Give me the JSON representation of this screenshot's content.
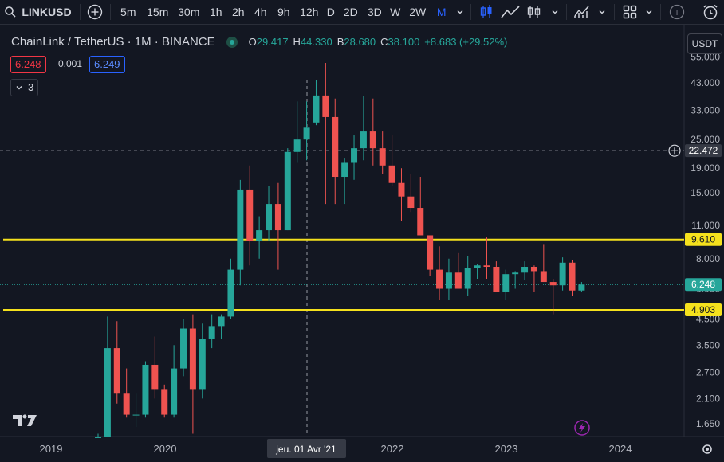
{
  "toolbar": {
    "symbol": "LINKUSD",
    "intervals": [
      "5m",
      "15m",
      "30m",
      "1h",
      "2h",
      "4h",
      "9h",
      "12h",
      "D",
      "2D",
      "3D",
      "W",
      "2W",
      "M"
    ],
    "active_interval": "M",
    "icons": [
      "search-icon",
      "plus-circle-icon",
      "chevron-down-icon",
      "candles-icon",
      "line-chart-icon",
      "bars-icon",
      "chevron-down-icon",
      "indicators-icon",
      "chevron-down-icon",
      "layout-grid-icon",
      "chevron-down-icon",
      "user-circle-icon",
      "alarm-clock-icon"
    ]
  },
  "legend": {
    "title": "ChainLink / TetherUS · 1M · BINANCE",
    "o_label": "O",
    "o_value": "29.417",
    "h_label": "H",
    "h_value": "44.330",
    "b_label": "B",
    "b_value": "28.680",
    "c_label": "C",
    "c_value": "38.100",
    "change": "+8.683 (+29.52%)",
    "sell_price": "6.248",
    "spread": "0.001",
    "buy_price": "6.249",
    "indicators_count": "3",
    "currency": "USDT"
  },
  "chart_data": {
    "type": "candlestick",
    "symbol": "LINKUSD",
    "interval": "1M",
    "y_scale": "log",
    "ylim": [
      1.4,
      60
    ],
    "x_ticks": [
      "2019",
      "2020",
      "2021",
      "2022",
      "2023",
      "2024"
    ],
    "y_ticks": [
      "55.000",
      "43.000",
      "33.000",
      "25.000",
      "19.000",
      "15.000",
      "11.000",
      "8.000",
      "6.000",
      "4.500",
      "3.500",
      "2.700",
      "2.100",
      "1.650"
    ],
    "crosshair": {
      "x_label": "jeu. 01 Avr '21",
      "y_label": "22.472"
    },
    "horizontal_lines": [
      {
        "value": 9.61,
        "label": "9.610",
        "color": "#f5e11d"
      },
      {
        "value": 4.903,
        "label": "4.903",
        "color": "#f5e11d"
      }
    ],
    "last_price": {
      "value": 6.248,
      "label": "6.248",
      "color": "#26a69a"
    },
    "up_color": "#26a69a",
    "down_color": "#ef5350",
    "candles": [
      {
        "o": 1.2,
        "h": 1.5,
        "l": 1.1,
        "c": 1.45
      },
      {
        "o": 1.45,
        "h": 4.6,
        "l": 1.4,
        "c": 3.4
      },
      {
        "o": 3.4,
        "h": 4.4,
        "l": 2.0,
        "c": 2.2
      },
      {
        "o": 2.2,
        "h": 2.8,
        "l": 1.75,
        "c": 1.8
      },
      {
        "o": 1.8,
        "h": 2.2,
        "l": 1.6,
        "c": 1.8
      },
      {
        "o": 1.8,
        "h": 3.0,
        "l": 1.75,
        "c": 2.9
      },
      {
        "o": 2.9,
        "h": 3.8,
        "l": 2.1,
        "c": 2.3
      },
      {
        "o": 2.3,
        "h": 2.4,
        "l": 1.75,
        "c": 1.8
      },
      {
        "o": 1.8,
        "h": 3.5,
        "l": 1.75,
        "c": 2.8
      },
      {
        "o": 2.8,
        "h": 4.5,
        "l": 2.6,
        "c": 4.1
      },
      {
        "o": 4.1,
        "h": 4.7,
        "l": 1.5,
        "c": 2.3
      },
      {
        "o": 2.3,
        "h": 4.3,
        "l": 2.1,
        "c": 3.7
      },
      {
        "o": 3.7,
        "h": 4.7,
        "l": 3.4,
        "c": 4.2
      },
      {
        "o": 4.2,
        "h": 4.7,
        "l": 3.7,
        "c": 4.6
      },
      {
        "o": 4.6,
        "h": 8.0,
        "l": 4.5,
        "c": 7.2
      },
      {
        "o": 7.2,
        "h": 17.0,
        "l": 6.2,
        "c": 15.5
      },
      {
        "o": 15.5,
        "h": 19.5,
        "l": 7.5,
        "c": 9.5
      },
      {
        "o": 9.5,
        "h": 12.0,
        "l": 8.0,
        "c": 10.5
      },
      {
        "o": 10.5,
        "h": 16.0,
        "l": 9.5,
        "c": 13.5
      },
      {
        "o": 13.5,
        "h": 16.5,
        "l": 7.2,
        "c": 10.5
      },
      {
        "o": 10.5,
        "h": 23.0,
        "l": 10.5,
        "c": 22.2
      },
      {
        "o": 22.2,
        "h": 36.0,
        "l": 20.0,
        "c": 25.0
      },
      {
        "o": 25.0,
        "h": 36.0,
        "l": 20.5,
        "c": 28.0
      },
      {
        "o": 29.417,
        "h": 44.33,
        "l": 28.68,
        "c": 38.1
      },
      {
        "o": 38.1,
        "h": 52.0,
        "l": 13.5,
        "c": 31.0
      },
      {
        "o": 31.0,
        "h": 37.0,
        "l": 13.5,
        "c": 17.5
      },
      {
        "o": 17.5,
        "h": 21.0,
        "l": 13.5,
        "c": 20.0
      },
      {
        "o": 20.0,
        "h": 26.0,
        "l": 17.0,
        "c": 23.0
      },
      {
        "o": 23.0,
        "h": 38.0,
        "l": 20.5,
        "c": 27.0
      },
      {
        "o": 27.0,
        "h": 37.0,
        "l": 19.5,
        "c": 23.0
      },
      {
        "o": 23.0,
        "h": 27.0,
        "l": 18.0,
        "c": 19.5
      },
      {
        "o": 19.5,
        "h": 26.0,
        "l": 16.0,
        "c": 16.5
      },
      {
        "o": 16.5,
        "h": 19.0,
        "l": 11.5,
        "c": 14.5
      },
      {
        "o": 14.5,
        "h": 18.0,
        "l": 12.5,
        "c": 13.0
      },
      {
        "o": 13.0,
        "h": 17.5,
        "l": 10.0,
        "c": 10.0
      },
      {
        "o": 10.0,
        "h": 10.0,
        "l": 6.8,
        "c": 7.2
      },
      {
        "o": 7.2,
        "h": 9.0,
        "l": 5.4,
        "c": 6.0
      },
      {
        "o": 6.0,
        "h": 8.0,
        "l": 5.4,
        "c": 7.0
      },
      {
        "o": 7.0,
        "h": 8.5,
        "l": 6.0,
        "c": 6.0
      },
      {
        "o": 6.0,
        "h": 8.2,
        "l": 5.6,
        "c": 7.3
      },
      {
        "o": 7.3,
        "h": 7.6,
        "l": 6.6,
        "c": 7.5
      },
      {
        "o": 7.5,
        "h": 9.8,
        "l": 6.6,
        "c": 7.4
      },
      {
        "o": 7.4,
        "h": 7.8,
        "l": 5.8,
        "c": 5.8
      },
      {
        "o": 5.8,
        "h": 7.2,
        "l": 5.4,
        "c": 6.9
      },
      {
        "o": 6.9,
        "h": 7.1,
        "l": 6.0,
        "c": 7.0
      },
      {
        "o": 7.0,
        "h": 7.8,
        "l": 6.5,
        "c": 7.4
      },
      {
        "o": 7.4,
        "h": 7.5,
        "l": 5.8,
        "c": 7.1
      },
      {
        "o": 7.1,
        "h": 9.2,
        "l": 6.5,
        "c": 6.4
      },
      {
        "o": 6.4,
        "h": 6.6,
        "l": 4.7,
        "c": 6.2
      },
      {
        "o": 6.2,
        "h": 8.1,
        "l": 5.9,
        "c": 7.7
      },
      {
        "o": 7.7,
        "h": 7.9,
        "l": 5.6,
        "c": 5.9
      },
      {
        "o": 5.9,
        "h": 6.4,
        "l": 5.8,
        "c": 6.248
      }
    ]
  }
}
